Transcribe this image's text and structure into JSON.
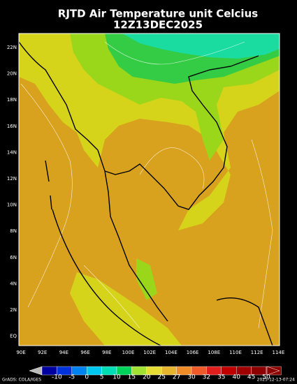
{
  "header": {
    "title": "RJTD Air Temperature unit Celcius",
    "subtitle": "12Z13DEC2025"
  },
  "map": {
    "lat_labels": [
      "22N",
      "20N",
      "18N",
      "16N",
      "14N",
      "12N",
      "10N",
      "8N",
      "6N",
      "4N",
      "2N",
      "EQ"
    ],
    "lon_labels": [
      "90E",
      "92E",
      "94E",
      "96E",
      "98E",
      "100E",
      "102E",
      "104E",
      "106E",
      "108E",
      "110E",
      "112E",
      "114E"
    ]
  },
  "colorbar": {
    "labels": [
      "-10",
      "-5",
      "0",
      "5",
      "10",
      "15",
      "20",
      "25",
      "27",
      "30",
      "32",
      "35",
      "40",
      "45",
      "50"
    ]
  },
  "footer": {
    "left": "GrADS: COLA/IGES",
    "right": "2025-12-13-07:24"
  }
}
